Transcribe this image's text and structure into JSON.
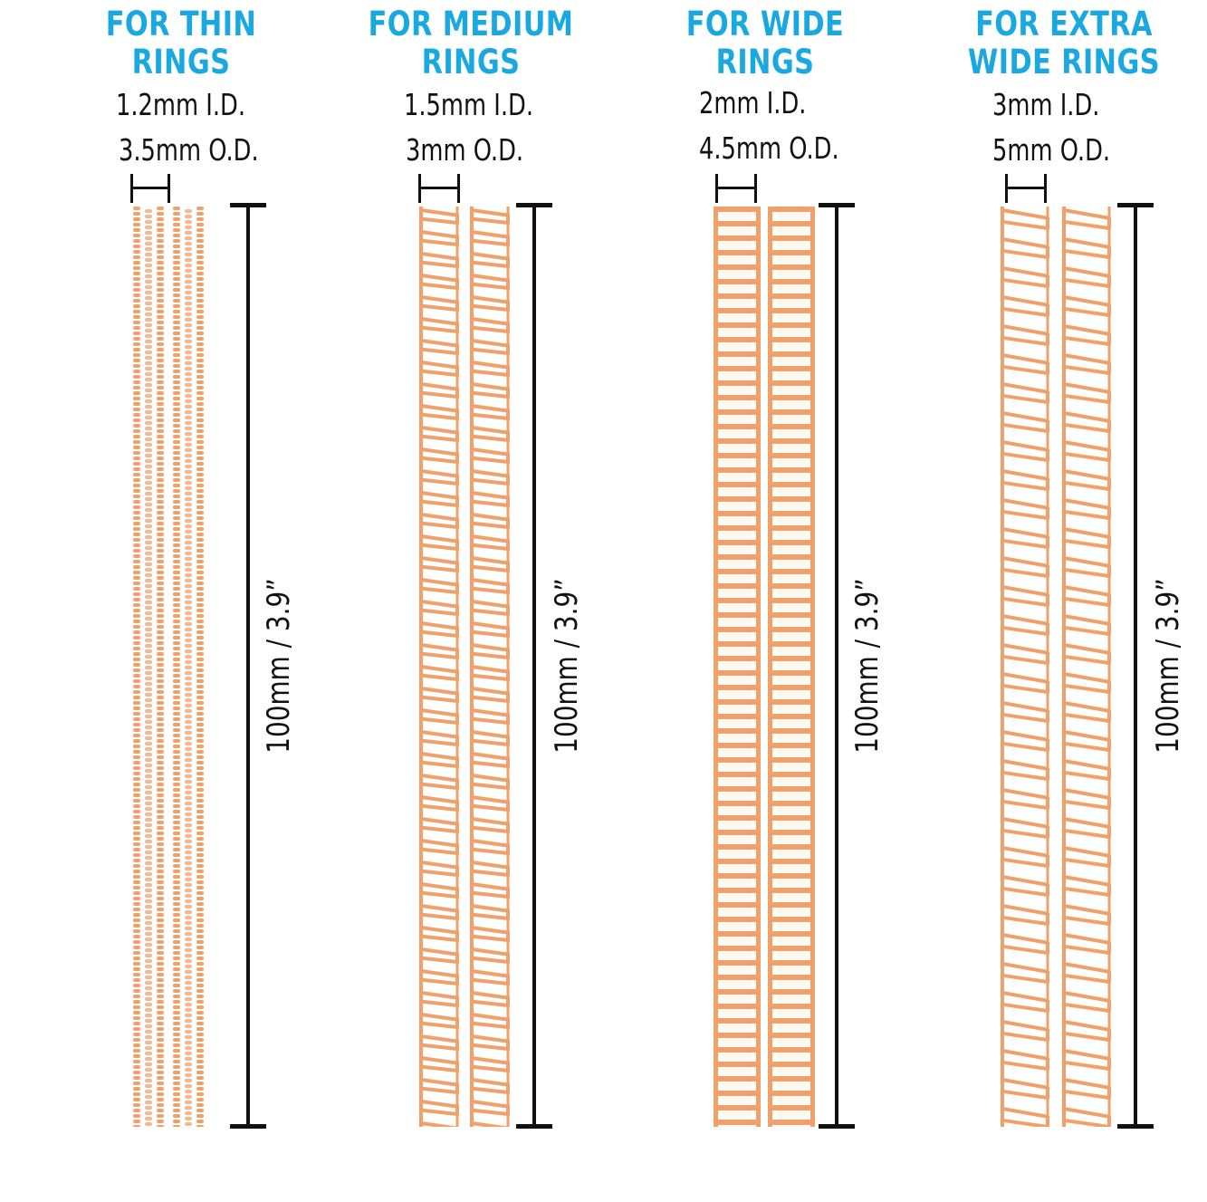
{
  "accent_color": "#1aa8e0",
  "spring_color": "#f2a06a",
  "groups": [
    {
      "title_line1": "FOR THIN",
      "title_line2": "RINGS",
      "inner_diameter": "1.2mm  I.D.",
      "outer_diameter": "3.5mm  O.D.",
      "length": "100mm  /  3.9”",
      "style": "fine"
    },
    {
      "title_line1": "FOR MEDIUM",
      "title_line2": "RINGS",
      "inner_diameter": "1.5mm  I.D.",
      "outer_diameter": "3mm  O.D.",
      "length": "100mm  /  3.9”",
      "style": "chain"
    },
    {
      "title_line1": "FOR WIDE",
      "title_line2": "RINGS",
      "inner_diameter": "2mm  I.D.",
      "outer_diameter": "4.5mm  O.D.",
      "length": "100mm  /  3.9”",
      "style": "coil"
    },
    {
      "title_line1": "FOR EXTRA",
      "title_line2": "WIDE RINGS",
      "inner_diameter": "3mm  I.D.",
      "outer_diameter": "5mm  O.D.",
      "length": "100mm  /  3.9”",
      "style": "chain"
    }
  ]
}
